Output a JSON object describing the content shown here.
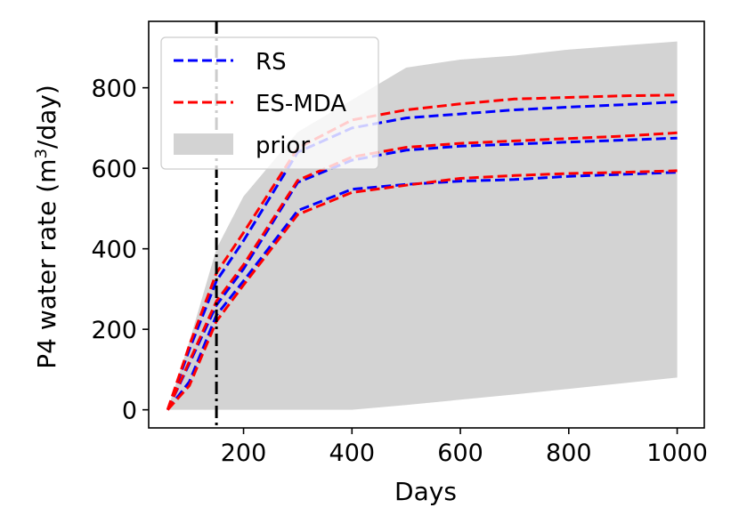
{
  "chart_data": {
    "type": "line",
    "title": "",
    "xlabel": "Days",
    "ylabel": "P4 water rate (m",
    "ylabel_superscript": "3",
    "ylabel_suffix": "/day)",
    "xlim": [
      25,
      1050
    ],
    "ylim": [
      -45,
      965
    ],
    "xticks": [
      200,
      400,
      600,
      800,
      1000
    ],
    "yticks": [
      0,
      200,
      400,
      600,
      800
    ],
    "vline": {
      "x": 150,
      "style": "dash-dot",
      "color": "#000000"
    },
    "legend": {
      "position": "upper-left",
      "entries": [
        {
          "label": "RS",
          "color": "#0000ff",
          "kind": "dashed-line"
        },
        {
          "label": "ES-MDA",
          "color": "#ff0000",
          "kind": "dashed-line"
        },
        {
          "label": "prior",
          "color": "#d3d3d3",
          "kind": "band"
        }
      ]
    },
    "prior_band": {
      "name": "prior",
      "color": "#d3d3d3",
      "x": [
        60,
        100,
        150,
        200,
        300,
        400,
        500,
        600,
        700,
        800,
        900,
        1000
      ],
      "lower": [
        0,
        0,
        0,
        0,
        0,
        0,
        12,
        25,
        38,
        52,
        66,
        80
      ],
      "upper": [
        0,
        170,
        400,
        530,
        690,
        770,
        850,
        870,
        880,
        895,
        905,
        915
      ]
    },
    "series": [
      {
        "name": "RS",
        "group": "upper",
        "color": "#0000ff",
        "x": [
          60,
          100,
          150,
          200,
          300,
          400,
          500,
          600,
          700,
          800,
          900,
          1000
        ],
        "values": [
          0,
          150,
          320,
          420,
          640,
          700,
          725,
          735,
          745,
          752,
          758,
          765
        ]
      },
      {
        "name": "RS",
        "group": "middle",
        "color": "#0000ff",
        "x": [
          60,
          100,
          150,
          200,
          300,
          400,
          500,
          600,
          700,
          800,
          900,
          1000
        ],
        "values": [
          0,
          115,
          260,
          350,
          565,
          620,
          645,
          655,
          660,
          665,
          670,
          675
        ]
      },
      {
        "name": "RS",
        "group": "lower",
        "color": "#0000ff",
        "x": [
          60,
          100,
          150,
          200,
          300,
          400,
          500,
          600,
          700,
          800,
          900,
          1000
        ],
        "values": [
          0,
          70,
          235,
          320,
          495,
          548,
          560,
          568,
          572,
          580,
          585,
          590
        ]
      },
      {
        "name": "ES-MDA",
        "group": "upper",
        "color": "#ff0000",
        "x": [
          60,
          100,
          150,
          200,
          300,
          400,
          500,
          600,
          700,
          800,
          900,
          1000
        ],
        "values": [
          0,
          160,
          340,
          440,
          650,
          720,
          745,
          760,
          772,
          776,
          780,
          782
        ]
      },
      {
        "name": "ES-MDA",
        "group": "middle",
        "color": "#ff0000",
        "x": [
          60,
          100,
          150,
          200,
          300,
          400,
          500,
          600,
          700,
          800,
          900,
          1000
        ],
        "values": [
          0,
          120,
          270,
          360,
          570,
          628,
          652,
          662,
          668,
          674,
          680,
          688
        ]
      },
      {
        "name": "ES-MDA",
        "group": "lower",
        "color": "#ff0000",
        "x": [
          60,
          100,
          150,
          200,
          300,
          400,
          500,
          600,
          700,
          800,
          900,
          1000
        ],
        "values": [
          0,
          60,
          220,
          310,
          485,
          540,
          558,
          575,
          582,
          587,
          590,
          594
        ]
      }
    ]
  }
}
